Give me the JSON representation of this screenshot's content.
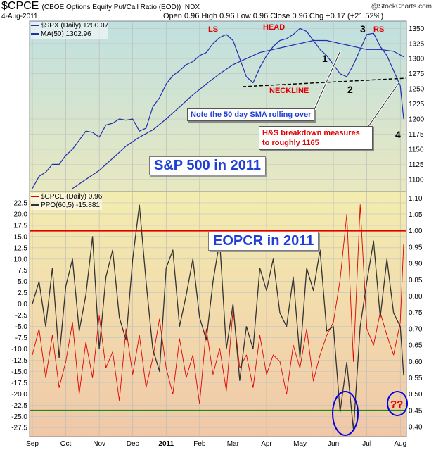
{
  "header": {
    "symbol": "$CPCE",
    "subtitle": "(CBOE Options Equity Put/Call Ratio (EOD))  INDX",
    "date": "4-Aug-2011",
    "ohlc": "Open 0.96  High 0.96  Low 0.96  Close 0.96  Chg +0.17 (+21.52%)",
    "brand": "@StockCharts.com"
  },
  "legend_top": [
    {
      "label": "$SPX (Daily) 1200.07",
      "color": "#1f2fb0"
    },
    {
      "label": "MA(50) 1302.96",
      "color": "#1f2fb0"
    }
  ],
  "legend_bottom": [
    {
      "label": "$CPCE (Daily) 0.96",
      "color": "#e00000"
    },
    {
      "label": "PPO(60,5) -15.881",
      "color": "#333333"
    }
  ],
  "labels": {
    "top_panel": "S&P 500 in 2011",
    "bottom_panel": "EOPCR in 2011",
    "note_sma": "Note the 50 day SMA rolling over",
    "note_hs": "H&S breakdown measures to roughly 1165",
    "ls": "LS",
    "head": "HEAD",
    "rs": "RS",
    "neckline": "NECKLINE",
    "n1": "1",
    "n2": "2",
    "n3": "3",
    "n4": "4",
    "qq": "??"
  },
  "colors": {
    "spx": "#1f2fb0",
    "cpce": "#e00000",
    "ppo": "#333333",
    "threshold_high": "#e00000",
    "threshold_low": "#1a8a1a",
    "circle": "#0000e0"
  },
  "chart_data": [
    {
      "type": "line",
      "title": "$SPX (Daily) 1200.07",
      "x_ticks": [
        "Sep",
        "Oct",
        "Nov",
        "Dec",
        "2011",
        "Feb",
        "Mar",
        "Apr",
        "May",
        "Jun",
        "Jul",
        "Aug"
      ],
      "y_ticks_right": [
        1100,
        1125,
        1150,
        1175,
        1200,
        1225,
        1250,
        1275,
        1300,
        1325,
        1350
      ],
      "ylim": [
        1080,
        1362
      ],
      "grid": true,
      "series": [
        {
          "name": "$SPX (Daily)",
          "x": [
            0,
            0.2,
            0.4,
            0.6,
            0.8,
            1.0,
            1.2,
            1.4,
            1.6,
            1.8,
            2.0,
            2.2,
            2.4,
            2.6,
            2.8,
            3.0,
            3.2,
            3.4,
            3.6,
            3.8,
            4.0,
            4.2,
            4.4,
            4.6,
            4.8,
            5.0,
            5.2,
            5.4,
            5.6,
            5.8,
            6.0,
            6.2,
            6.4,
            6.6,
            6.8,
            7.0,
            7.2,
            7.4,
            7.6,
            7.8,
            8.0,
            8.2,
            8.4,
            8.6,
            8.8,
            9.0,
            9.2,
            9.4,
            9.6,
            9.8,
            10.0,
            10.2,
            10.4,
            10.6,
            10.8,
            11.0,
            11.1
          ],
          "values": [
            1085,
            1105,
            1112,
            1125,
            1125,
            1140,
            1150,
            1165,
            1180,
            1178,
            1170,
            1190,
            1193,
            1200,
            1198,
            1200,
            1180,
            1185,
            1220,
            1235,
            1258,
            1272,
            1280,
            1290,
            1295,
            1305,
            1310,
            1325,
            1335,
            1340,
            1330,
            1300,
            1270,
            1260,
            1285,
            1305,
            1320,
            1330,
            1333,
            1340,
            1350,
            1345,
            1330,
            1315,
            1305,
            1290,
            1275,
            1270,
            1290,
            1315,
            1340,
            1342,
            1320,
            1305,
            1280,
            1255,
            1200
          ]
        },
        {
          "name": "MA(50)",
          "x": [
            1.2,
            1.6,
            2.0,
            2.4,
            2.8,
            3.2,
            3.6,
            4.0,
            4.4,
            4.8,
            5.2,
            5.6,
            6.0,
            6.4,
            6.8,
            7.2,
            7.6,
            8.0,
            8.4,
            8.8,
            9.2,
            9.6,
            10.0,
            10.4,
            10.8,
            11.1
          ],
          "values": [
            1085,
            1100,
            1115,
            1135,
            1155,
            1170,
            1182,
            1200,
            1220,
            1240,
            1258,
            1275,
            1290,
            1300,
            1310,
            1315,
            1320,
            1325,
            1330,
            1330,
            1325,
            1320,
            1315,
            1315,
            1312,
            1303
          ]
        }
      ]
    },
    {
      "type": "line",
      "title": "$CPCE (Daily) 0.96 / PPO(60,5) -15.881",
      "x_ticks": [
        "Sep",
        "Oct",
        "Nov",
        "Dec",
        "2011",
        "Feb",
        "Mar",
        "Apr",
        "May",
        "Jun",
        "Jul",
        "Aug"
      ],
      "y_ticks_left": [
        22.5,
        20.0,
        17.5,
        15.0,
        12.5,
        10.0,
        7.5,
        5.0,
        2.5,
        0.0,
        -2.5,
        -5.0,
        -7.5,
        -10.0,
        -12.5,
        -15.0,
        -17.5,
        -20.0,
        -22.5,
        -25.0,
        -27.5
      ],
      "y_ticks_right": [
        1.1,
        1.05,
        1.0,
        0.95,
        0.9,
        0.85,
        0.8,
        0.75,
        0.7,
        0.65,
        0.6,
        0.55,
        0.5,
        0.45,
        0.4
      ],
      "ylim_left": [
        -29.5,
        25
      ],
      "ylim_right": [
        0.37,
        1.12
      ],
      "thresholds": [
        1.0,
        0.45
      ],
      "series": [
        {
          "name": "$CPCE (Daily)",
          "axis": "right",
          "x": [
            0,
            0.2,
            0.4,
            0.6,
            0.8,
            1.0,
            1.2,
            1.4,
            1.6,
            1.8,
            2.0,
            2.2,
            2.4,
            2.6,
            2.8,
            3.0,
            3.2,
            3.4,
            3.6,
            3.8,
            4.0,
            4.2,
            4.4,
            4.6,
            4.8,
            5.0,
            5.2,
            5.4,
            5.6,
            5.8,
            6.0,
            6.2,
            6.4,
            6.6,
            6.8,
            7.0,
            7.2,
            7.4,
            7.6,
            7.8,
            8.0,
            8.2,
            8.4,
            8.6,
            8.8,
            9.0,
            9.2,
            9.4,
            9.6,
            9.8,
            10.0,
            10.2,
            10.4,
            10.6,
            10.8,
            11.0,
            11.1
          ],
          "values": [
            0.62,
            0.7,
            0.55,
            0.68,
            0.52,
            0.6,
            0.72,
            0.5,
            0.66,
            0.55,
            0.74,
            0.58,
            0.63,
            0.48,
            0.7,
            0.56,
            0.68,
            0.52,
            0.61,
            0.73,
            0.58,
            0.5,
            0.67,
            0.55,
            0.62,
            0.47,
            0.7,
            0.56,
            0.64,
            0.51,
            0.76,
            0.58,
            0.62,
            0.52,
            0.68,
            0.56,
            0.62,
            0.6,
            0.5,
            0.65,
            0.58,
            0.7,
            0.54,
            0.62,
            0.68,
            0.72,
            0.85,
            1.05,
            0.6,
            1.08,
            0.7,
            0.65,
            0.75,
            0.68,
            0.62,
            0.72,
            0.96
          ]
        },
        {
          "name": "PPO(60,5)",
          "axis": "left",
          "x": [
            0,
            0.2,
            0.4,
            0.6,
            0.8,
            1.0,
            1.2,
            1.4,
            1.6,
            1.8,
            2.0,
            2.2,
            2.4,
            2.6,
            2.8,
            3.0,
            3.2,
            3.4,
            3.6,
            3.8,
            4.0,
            4.2,
            4.4,
            4.6,
            4.8,
            5.0,
            5.2,
            5.4,
            5.6,
            5.8,
            6.0,
            6.2,
            6.4,
            6.6,
            6.8,
            7.0,
            7.2,
            7.4,
            7.6,
            7.8,
            8.0,
            8.2,
            8.4,
            8.6,
            8.8,
            9.0,
            9.2,
            9.4,
            9.6,
            9.8,
            10.0,
            10.2,
            10.4,
            10.6,
            10.8,
            11.0,
            11.1
          ],
          "values": [
            0,
            5,
            -5,
            8,
            -12,
            4,
            10,
            -6,
            2,
            15,
            -10,
            6,
            12,
            -3,
            -8,
            10,
            22,
            5,
            -10,
            -15,
            8,
            12,
            -5,
            2,
            10,
            -3,
            -8,
            5,
            14,
            -10,
            0,
            -17,
            -5,
            -10,
            8,
            3,
            10,
            -2,
            -5,
            6,
            -12,
            8,
            3,
            12,
            -6,
            -5,
            -24,
            -13,
            -28,
            -5,
            5,
            14,
            -3,
            10,
            -2,
            -5,
            -15.9
          ]
        }
      ]
    }
  ]
}
